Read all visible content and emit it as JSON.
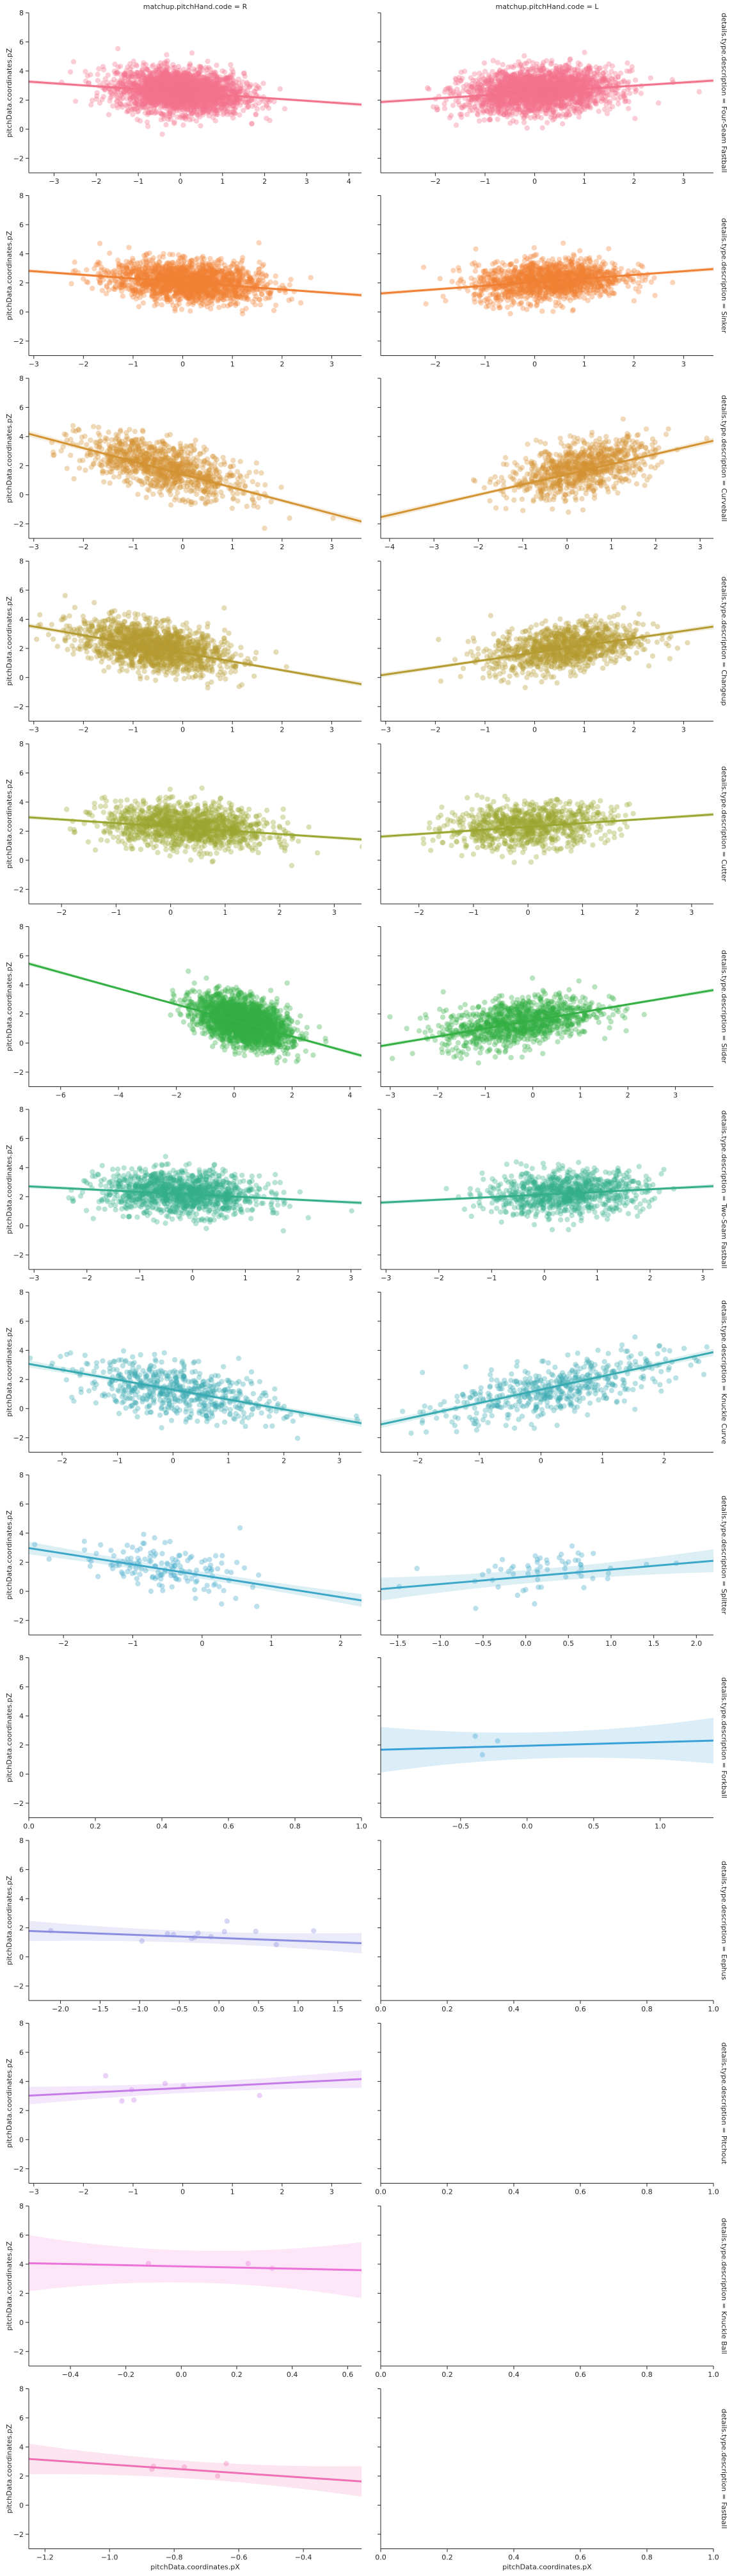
{
  "figure": {
    "x_axis_label": "pitchData.coordinates.pX",
    "y_axis_label": "pitchData.coordinates.pZ"
  },
  "chart_data": {
    "type": "scatter",
    "facet_columns": [
      "matchup.pitchHand.code = R",
      "matchup.pitchHand.code = L"
    ],
    "y_range": [
      -3,
      8
    ],
    "y_ticks": [
      -2,
      0,
      2,
      4,
      6,
      8
    ],
    "panels": [
      {
        "row": "details.type.description = Four-Seam Fastball",
        "color": "#f3728b",
        "R": {
          "xlim": [
            -3.6,
            4.3
          ],
          "xticks": [
            -3,
            -2,
            -1,
            0,
            1,
            2,
            3,
            4
          ],
          "n": 2600,
          "cx": 0.0,
          "sx": 0.75,
          "cy": 2.6,
          "sy": 0.75,
          "fit": [
            2.55,
            -0.2
          ],
          "ci": 0.08
        },
        "L": {
          "xlim": [
            -3.1,
            3.6
          ],
          "xticks": [
            -2,
            -1,
            0,
            1,
            2,
            3
          ],
          "n": 2400,
          "cx": 0.1,
          "sx": 0.75,
          "cy": 2.6,
          "sy": 0.75,
          "fit": [
            2.55,
            0.22
          ],
          "ci": 0.08
        }
      },
      {
        "row": "details.type.description = Sinker",
        "color": "#f08134",
        "R": {
          "xlim": [
            -3.1,
            3.6
          ],
          "xticks": [
            -3,
            -2,
            -1,
            0,
            1,
            2,
            3
          ],
          "n": 1800,
          "cx": 0.1,
          "sx": 0.75,
          "cy": 2.1,
          "sy": 0.7,
          "fit": [
            2.05,
            -0.25
          ],
          "ci": 0.08
        },
        "L": {
          "xlim": [
            -3.1,
            3.6
          ],
          "xticks": [
            -2,
            -1,
            0,
            1,
            2,
            3
          ],
          "n": 1400,
          "cx": 0.3,
          "sx": 0.75,
          "cy": 2.1,
          "sy": 0.7,
          "fit": [
            2.05,
            0.25
          ],
          "ci": 0.08
        }
      },
      {
        "row": "details.type.description = Curveball",
        "color": "#d39333",
        "R": {
          "xlim": [
            -3.1,
            3.6
          ],
          "xticks": [
            -3,
            -2,
            -1,
            0,
            1,
            2,
            3
          ],
          "n": 1000,
          "cx": -0.4,
          "sx": 0.8,
          "cy": 1.6,
          "sy": 0.85,
          "fit": [
            1.4,
            -0.9
          ],
          "ci": 0.12
        },
        "L": {
          "xlim": [
            -4.2,
            3.3
          ],
          "xticks": [
            -4,
            -3,
            -2,
            -1,
            0,
            1,
            2,
            3
          ],
          "n": 900,
          "cx": 0.3,
          "sx": 0.8,
          "cy": 1.6,
          "sy": 0.85,
          "fit": [
            1.4,
            0.7
          ],
          "ci": 0.12
        }
      },
      {
        "row": "details.type.description = Changeup",
        "color": "#b59c32",
        "R": {
          "xlim": [
            -3.1,
            3.6
          ],
          "xticks": [
            -3,
            -2,
            -1,
            0,
            1,
            2,
            3
          ],
          "n": 1500,
          "cx": -0.6,
          "sx": 0.75,
          "cy": 1.8,
          "sy": 0.8,
          "fit": [
            1.7,
            -0.6
          ],
          "ci": 0.1
        },
        "L": {
          "xlim": [
            -3.1,
            3.6
          ],
          "xticks": [
            -3,
            -2,
            -1,
            0,
            1,
            2,
            3
          ],
          "n": 1100,
          "cx": 0.6,
          "sx": 0.75,
          "cy": 1.8,
          "sy": 0.8,
          "fit": [
            1.7,
            0.5
          ],
          "ci": 0.1
        }
      },
      {
        "row": "details.type.description = Cutter",
        "color": "#9aa731",
        "R": {
          "xlim": [
            -2.6,
            3.5
          ],
          "xticks": [
            -2,
            -1,
            0,
            1,
            2,
            3
          ],
          "n": 1300,
          "cx": 0.3,
          "sx": 0.75,
          "cy": 2.4,
          "sy": 0.75,
          "fit": [
            2.3,
            -0.25
          ],
          "ci": 0.08
        },
        "L": {
          "xlim": [
            -2.7,
            3.4
          ],
          "xticks": [
            -2,
            -1,
            0,
            1,
            2,
            3
          ],
          "n": 900,
          "cx": 0.0,
          "sx": 0.75,
          "cy": 2.4,
          "sy": 0.75,
          "fit": [
            2.3,
            0.25
          ],
          "ci": 0.08
        }
      },
      {
        "row": "details.type.description = Slider",
        "color": "#34b045",
        "R": {
          "xlim": [
            -7.1,
            4.4
          ],
          "xticks": [
            -6,
            -4,
            -2,
            0,
            2,
            4
          ],
          "n": 2300,
          "cx": 0.3,
          "sx": 0.8,
          "cy": 1.6,
          "sy": 0.8,
          "fit": [
            1.55,
            -0.55
          ],
          "ci": 0.08
        },
        "L": {
          "xlim": [
            -3.2,
            3.8
          ],
          "xticks": [
            -3,
            -2,
            -1,
            0,
            1,
            2,
            3
          ],
          "n": 1100,
          "cx": -0.3,
          "sx": 0.8,
          "cy": 1.6,
          "sy": 0.8,
          "fit": [
            1.55,
            0.55
          ],
          "ci": 0.08
        }
      },
      {
        "row": "details.type.description = Two-Seam Fastball",
        "color": "#35ae8a",
        "R": {
          "xlim": [
            -3.1,
            3.2
          ],
          "xticks": [
            -3,
            -2,
            -1,
            0,
            1,
            2,
            3
          ],
          "n": 1200,
          "cx": -0.2,
          "sx": 0.75,
          "cy": 2.2,
          "sy": 0.75,
          "fit": [
            2.15,
            -0.18
          ],
          "ci": 0.08
        },
        "L": {
          "xlim": [
            -3.1,
            3.2
          ],
          "xticks": [
            -3,
            -2,
            -1,
            0,
            1,
            2,
            3
          ],
          "n": 900,
          "cx": 0.4,
          "sx": 0.75,
          "cy": 2.2,
          "sy": 0.75,
          "fit": [
            2.15,
            0.18
          ],
          "ci": 0.08
        }
      },
      {
        "row": "details.type.description = Knuckle Curve",
        "color": "#38aab2",
        "R": {
          "xlim": [
            -2.6,
            3.4
          ],
          "xticks": [
            -2,
            -1,
            0,
            1,
            2,
            3
          ],
          "n": 600,
          "cx": 0.1,
          "sx": 0.9,
          "cy": 1.2,
          "sy": 0.9,
          "fit": [
            1.3,
            -0.68
          ],
          "ci": 0.14
        },
        "L": {
          "xlim": [
            -2.6,
            2.8
          ],
          "xticks": [
            -2,
            -1,
            0,
            1,
            2
          ],
          "n": 500,
          "cx": 0.2,
          "sx": 0.9,
          "cy": 1.2,
          "sy": 0.9,
          "fit": [
            1.3,
            0.92
          ],
          "ci": 0.14
        }
      },
      {
        "row": "details.type.description = Splitter",
        "color": "#3ca7c8",
        "R": {
          "xlim": [
            -2.5,
            2.3
          ],
          "xticks": [
            -2,
            -1,
            0,
            1,
            2
          ],
          "n": 150,
          "cx": -0.6,
          "sx": 0.6,
          "cy": 1.3,
          "sy": 0.8,
          "fit": [
            1.1,
            -0.75
          ],
          "ci": 0.25
        },
        "L": {
          "xlim": [
            -1.7,
            2.2
          ],
          "xticks": [
            -1.5,
            -1.0,
            -0.5,
            0.0,
            0.5,
            1.0,
            1.5,
            2.0
          ],
          "n": 60,
          "cx": 0.2,
          "sx": 0.6,
          "cy": 1.3,
          "sy": 0.8,
          "fit": [
            1.0,
            0.5
          ],
          "ci": 0.45
        }
      },
      {
        "row": "details.type.description = Forkball",
        "color": "#3aa0d8",
        "R": {
          "empty": true,
          "xlim": [
            0,
            1
          ],
          "xticks": [
            0.0,
            0.2,
            0.4,
            0.6,
            0.8,
            1.0
          ]
        },
        "L": {
          "xlim": [
            -1.1,
            1.4
          ],
          "xticks": [
            -0.5,
            0.0,
            0.5,
            1.0
          ],
          "n": 3,
          "cx": 0.1,
          "sx": 0.6,
          "cy": 2.0,
          "sy": 0.5,
          "fit": [
            1.95,
            0.25
          ],
          "ci": 0.9
        }
      },
      {
        "row": "details.type.description = Eephus",
        "color": "#8a8de0",
        "R": {
          "xlim": [
            -2.4,
            1.8
          ],
          "xticks": [
            -2.0,
            -1.5,
            -1.0,
            -0.5,
            0.0,
            0.5,
            1.0,
            1.5
          ],
          "n": 13,
          "cx": -0.3,
          "sx": 1.0,
          "cy": 1.5,
          "sy": 0.5,
          "fit": [
            1.3,
            -0.2
          ],
          "ci": 0.4
        },
        "L": {
          "empty": true,
          "xlim": [
            0,
            1
          ],
          "xticks": [
            0.0,
            0.2,
            0.4,
            0.6,
            0.8,
            1.0
          ]
        }
      },
      {
        "row": "details.type.description = Pitchout",
        "color": "#c67ce8",
        "R": {
          "xlim": [
            -3.1,
            3.6
          ],
          "xticks": [
            -3,
            -2,
            -1,
            0,
            1,
            2,
            3
          ],
          "n": 8,
          "cx": 0.5,
          "sx": 2.0,
          "cy": 3.6,
          "sy": 0.4,
          "fit": [
            3.55,
            0.17
          ],
          "ci": 0.35
        },
        "L": {
          "empty": true,
          "xlim": [
            0,
            1
          ],
          "xticks": [
            0.0,
            0.2,
            0.4,
            0.6,
            0.8,
            1.0
          ]
        }
      },
      {
        "row": "details.type.description = Knuckle Ball",
        "color": "#ec72d8",
        "R": {
          "xlim": [
            -0.55,
            0.65
          ],
          "xticks": [
            -0.4,
            -0.2,
            0.0,
            0.2,
            0.4,
            0.6
          ],
          "n": 4,
          "cx": 0.0,
          "sx": 0.3,
          "cy": 3.8,
          "sy": 0.3,
          "fit": [
            3.85,
            -0.4
          ],
          "ci": 1.1
        },
        "L": {
          "empty": true,
          "xlim": [
            0,
            1
          ],
          "xticks": [
            0.0,
            0.2,
            0.4,
            0.6,
            0.8,
            1.0
          ]
        }
      },
      {
        "row": "details.type.description = Fastball",
        "color": "#f16fb4",
        "R": {
          "xlim": [
            -1.25,
            -0.22
          ],
          "xticks": [
            -1.2,
            -1.0,
            -0.8,
            -0.6,
            -0.4
          ],
          "n": 5,
          "cx": -0.8,
          "sx": 0.25,
          "cy": 1.5,
          "sy": 0.4,
          "fit": [
            1.3,
            -1.5
          ],
          "ci": 0.6
        },
        "L": {
          "empty": true,
          "xlim": [
            0,
            1
          ],
          "xticks": [
            0.0,
            0.2,
            0.4,
            0.6,
            0.8,
            1.0
          ]
        }
      }
    ]
  }
}
